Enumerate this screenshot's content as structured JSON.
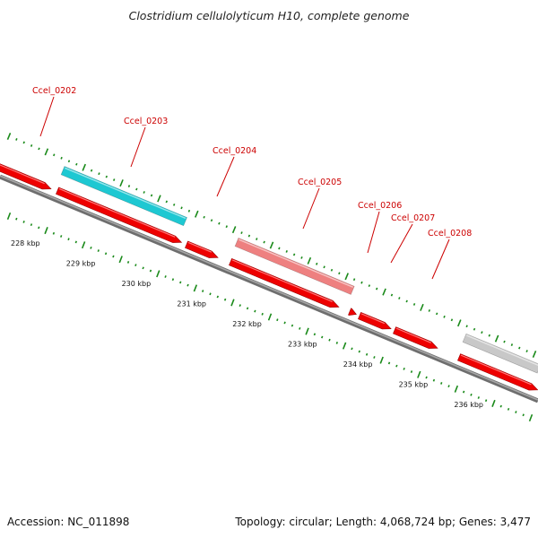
{
  "title": "Clostridium cellulolyticum H10, complete genome",
  "footer": {
    "accession": "Accession: NC_011898",
    "summary": "Topology: circular; Length: 4,068,724 bp; Genes: 3,477"
  },
  "axis": {
    "ticks": [
      "228 kbp",
      "229 kbp",
      "230 kbp",
      "231 kbp",
      "232 kbp",
      "233 kbp",
      "234 kbp",
      "235 kbp",
      "236 kbp"
    ]
  },
  "labels": [
    "Ccel_0202",
    "Ccel_0203",
    "Ccel_0204",
    "Ccel_0205",
    "Ccel_0206",
    "Ccel_0207",
    "Ccel_0208"
  ],
  "colors": {
    "gene": "#ee0000",
    "label": "#cc0000",
    "highlight_cyan": "#1ec8d2",
    "highlight_pink": "#ee8080",
    "highlight_gray": "#c8c8c8",
    "backbone": "#888888",
    "tick": "#1a8a1a"
  }
}
